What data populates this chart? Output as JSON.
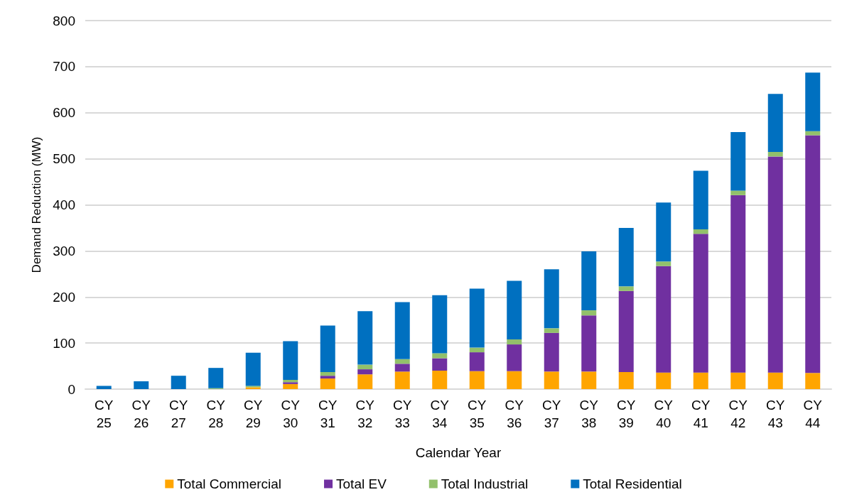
{
  "chart_data": {
    "type": "bar",
    "stacked": true,
    "xlabel": "Calendar Year",
    "ylabel": "Demand Reduction (MW)",
    "categories": [
      "CY 25",
      "CY 26",
      "CY 27",
      "CY 28",
      "CY 29",
      "CY 30",
      "CY 31",
      "CY 32",
      "CY 33",
      "CY 34",
      "CY 35",
      "CY 36",
      "CY 37",
      "CY 38",
      "CY 39",
      "CY 40",
      "CY 41",
      "CY 42",
      "CY 43",
      "CY 44"
    ],
    "series": [
      {
        "name": "Total Commercial",
        "color": "#ffa500",
        "values": [
          0,
          0,
          0,
          0,
          4,
          11,
          23,
          32,
          38,
          40,
          39,
          39,
          38,
          38,
          37,
          36,
          36,
          36,
          36,
          35
        ]
      },
      {
        "name": "Total EV",
        "color": "#7030a0",
        "values": [
          0,
          0,
          0,
          0,
          null,
          4,
          6,
          11,
          17,
          27,
          41,
          58,
          84,
          122,
          176,
          231,
          301,
          385,
          469,
          516
        ]
      },
      {
        "name": "Total Industrial",
        "color": "#92c06b",
        "values": [
          0,
          0,
          0,
          2,
          3,
          5,
          8,
          10,
          10,
          11,
          10,
          11,
          10,
          11,
          10,
          10,
          10,
          10,
          10,
          9
        ]
      },
      {
        "name": "Total Residential",
        "color": "#0070c0",
        "values": [
          7,
          17,
          29,
          44,
          72,
          84,
          101,
          116,
          124,
          126,
          128,
          127,
          128,
          128,
          127,
          128,
          127,
          127,
          126,
          127
        ]
      }
    ],
    "ylim": [
      0,
      800
    ],
    "yticks": [
      0,
      100,
      200,
      300,
      400,
      500,
      600,
      700,
      800
    ],
    "grid": "y",
    "legend": "bottom"
  }
}
